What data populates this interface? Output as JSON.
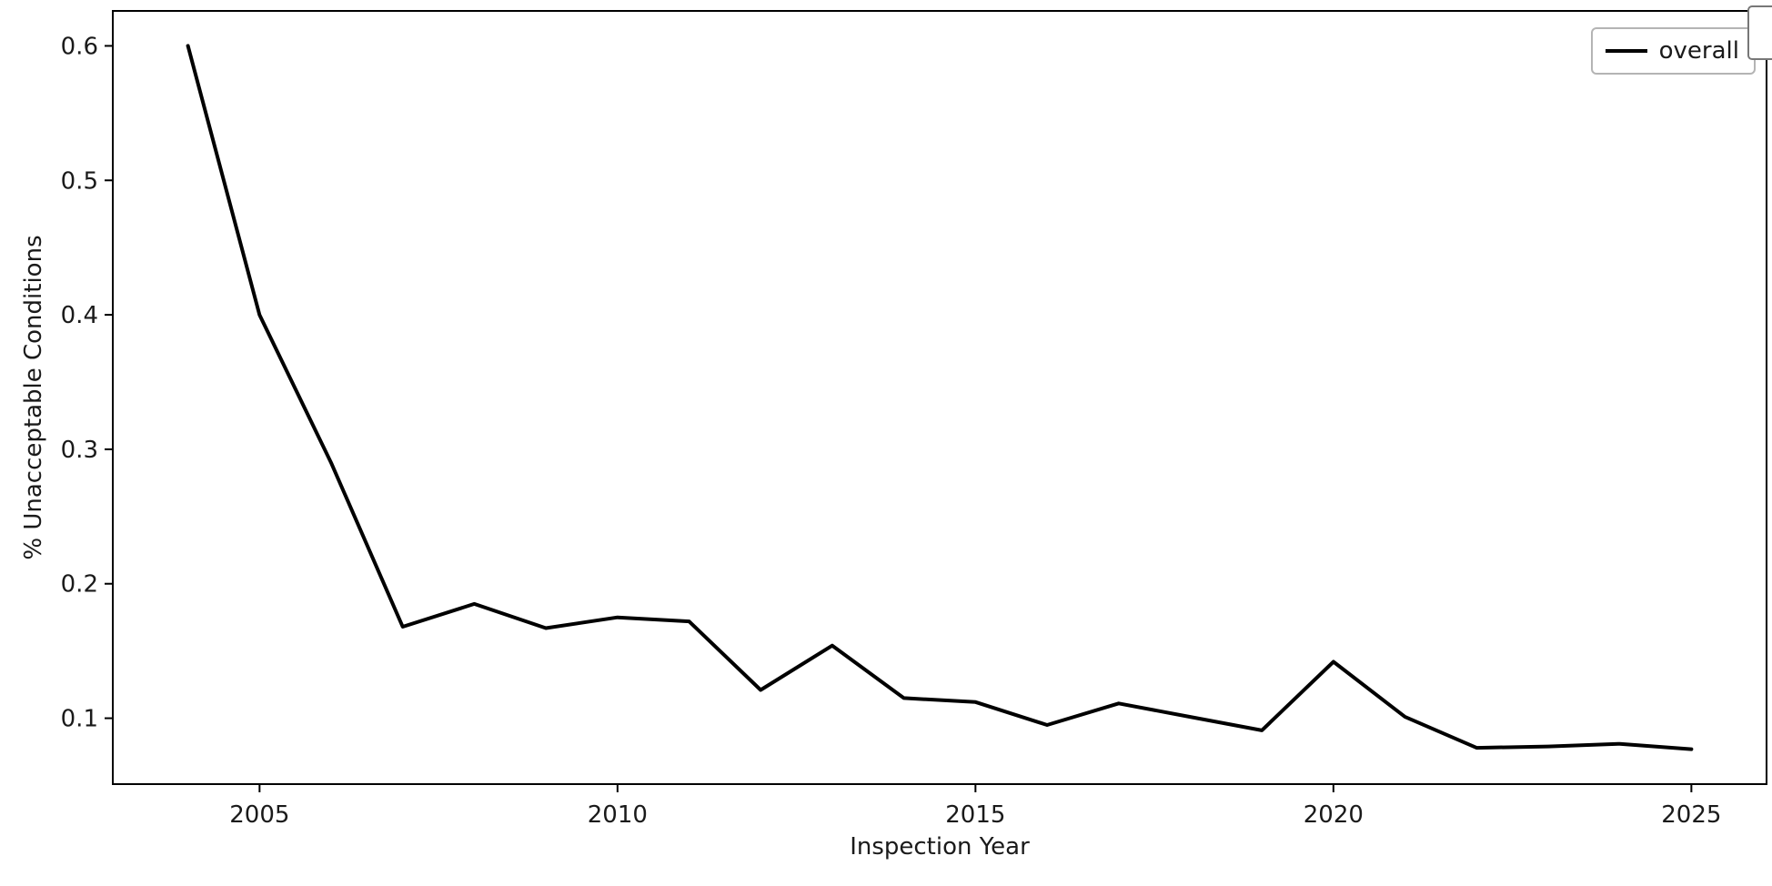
{
  "figure": {
    "background": "#ffffff",
    "xlabel": "Inspection Year",
    "ylabel": "% Unacceptable Conditions",
    "legend": {
      "label": "overall",
      "line_color": "#000000"
    }
  },
  "chart_data": {
    "type": "line",
    "title": "",
    "xlabel": "Inspection Year",
    "ylabel": "% Unacceptable Conditions",
    "x": [
      2004,
      2005,
      2006,
      2007,
      2008,
      2009,
      2010,
      2011,
      2012,
      2013,
      2014,
      2015,
      2016,
      2017,
      2018,
      2019,
      2020,
      2021,
      2022,
      2023,
      2024,
      2025
    ],
    "series": [
      {
        "name": "overall",
        "color": "#000000",
        "values": [
          0.6,
          0.4,
          0.29,
          0.168,
          0.185,
          0.167,
          0.175,
          0.172,
          0.121,
          0.154,
          0.115,
          0.112,
          0.095,
          0.111,
          0.101,
          0.091,
          0.142,
          0.101,
          0.078,
          0.079,
          0.081,
          0.077
        ]
      }
    ],
    "xticks": [
      2005,
      2010,
      2015,
      2020,
      2025
    ],
    "xtick_labels": [
      "2005",
      "2010",
      "2015",
      "2020",
      "2025"
    ],
    "yticks": [
      0.1,
      0.2,
      0.3,
      0.4,
      0.5,
      0.6
    ],
    "ytick_labels": [
      "0.1",
      "0.2",
      "0.3",
      "0.4",
      "0.5",
      "0.6"
    ],
    "xlim": [
      2002.95,
      2026.05
    ],
    "ylim": [
      0.051,
      0.626
    ],
    "grid": false,
    "legend_position": "upper right"
  }
}
